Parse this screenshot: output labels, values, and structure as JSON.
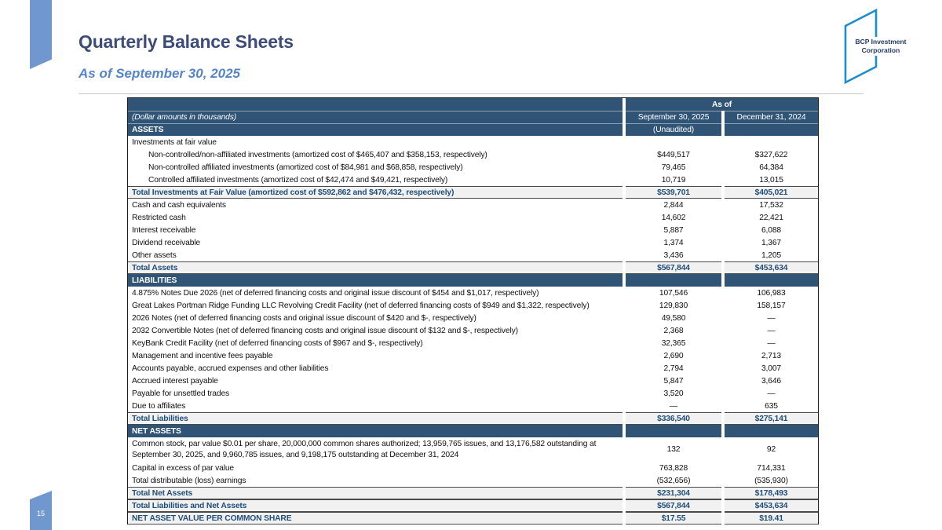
{
  "page": {
    "title": "Quarterly Balance Sheets",
    "subtitle": "As of September 30, 2025",
    "page_number": "15",
    "logo_line1": "BCP Investment",
    "logo_line2": "Corporation"
  },
  "colors": {
    "navy_header": "#305476",
    "total_text": "#1F4E79",
    "total_bg": "#F1F1F1",
    "ribbon_blue": "#7098CE",
    "title_color": "#3C4B78",
    "subtitle_color": "#5585C6",
    "logo_stroke": "#1B8ECB",
    "logo_text_color": "#203864"
  },
  "table": {
    "header": {
      "as_of": "As of",
      "note": "(Dollar amounts in thousands)",
      "col_sep": "September 30, 2025",
      "col_dec": "December 31, 2024",
      "col_sep_sub": "(Unaudited)",
      "assets_label": "ASSETS"
    },
    "rows": [
      {
        "type": "plain",
        "indent": false,
        "label": "Investments at fair value",
        "v1": "",
        "v2": ""
      },
      {
        "type": "plain",
        "indent": true,
        "label": "Non-controlled/non-affiliated investments (amortized cost of $465,407 and $358,153, respectively)",
        "v1": "$449,517",
        "v2": "$327,622"
      },
      {
        "type": "plain",
        "indent": true,
        "label": "Non-controlled affiliated investments (amortized cost of $84,981 and $68,858, respectively)",
        "v1": "79,465",
        "v2": "64,384"
      },
      {
        "type": "plain",
        "indent": true,
        "label": "Controlled affiliated investments (amortized cost of $42,474 and $49,421, respectively)",
        "v1": "10,719",
        "v2": "13,015"
      },
      {
        "type": "total",
        "indent": false,
        "label": "Total Investments at Fair Value (amortized cost of $592,862 and $476,432, respectively)",
        "v1": "$539,701",
        "v2": "$405,021"
      },
      {
        "type": "plain",
        "indent": false,
        "label": "Cash and cash equivalents",
        "v1": "2,844",
        "v2": "17,532"
      },
      {
        "type": "plain",
        "indent": false,
        "label": "Restricted cash",
        "v1": "14,602",
        "v2": "22,421"
      },
      {
        "type": "plain",
        "indent": false,
        "label": "Interest receivable",
        "v1": "5,887",
        "v2": "6,088"
      },
      {
        "type": "plain",
        "indent": false,
        "label": "Dividend receivable",
        "v1": "1,374",
        "v2": "1,367"
      },
      {
        "type": "plain",
        "indent": false,
        "label": "Other assets",
        "v1": "3,436",
        "v2": "1,205"
      },
      {
        "type": "total",
        "indent": false,
        "label": "Total Assets",
        "v1": "$567,844",
        "v2": "$453,634"
      },
      {
        "type": "section",
        "indent": false,
        "label": "LIABILITIES",
        "v1": "",
        "v2": ""
      },
      {
        "type": "plain",
        "indent": false,
        "label": "4.875% Notes Due 2026 (net of deferred financing costs and original issue discount of $454 and $1,017, respectively)",
        "v1": "107,546",
        "v2": "106,983"
      },
      {
        "type": "plain",
        "indent": false,
        "label": "Great Lakes Portman Ridge Funding LLC Revolving Credit Facility (net of deferred financing costs of $949 and $1,322, respectively)",
        "v1": "129,830",
        "v2": "158,157"
      },
      {
        "type": "plain",
        "indent": false,
        "label": "2026 Notes (net of deferred financing costs and original issue discount of $420 and $-, respectively)",
        "v1": "49,580",
        "v2": "—"
      },
      {
        "type": "plain",
        "indent": false,
        "label": "2032 Convertible Notes (net of deferred financing costs and original issue discount of $132 and $-, respectively)",
        "v1": "2,368",
        "v2": "—"
      },
      {
        "type": "plain",
        "indent": false,
        "label": "KeyBank Credit Facility (net of deferred financing costs of $967 and $-, respectively)",
        "v1": "32,365",
        "v2": "—"
      },
      {
        "type": "plain",
        "indent": false,
        "label": "Management and incentive fees payable",
        "v1": "2,690",
        "v2": "2,713"
      },
      {
        "type": "plain",
        "indent": false,
        "label": "Accounts payable, accrued expenses and other liabilities",
        "v1": "2,794",
        "v2": "3,007"
      },
      {
        "type": "plain",
        "indent": false,
        "label": "Accrued interest payable",
        "v1": "5,847",
        "v2": "3,646"
      },
      {
        "type": "plain",
        "indent": false,
        "label": "Payable for unsettled trades",
        "v1": "3,520",
        "v2": "—"
      },
      {
        "type": "plain",
        "indent": false,
        "label": "Due to affiliates",
        "v1": "—",
        "v2": "635"
      },
      {
        "type": "total",
        "indent": false,
        "label": "Total Liabilities",
        "v1": "$336,540",
        "v2": "$275,141"
      },
      {
        "type": "section",
        "indent": false,
        "label": "NET ASSETS",
        "v1": "",
        "v2": ""
      },
      {
        "type": "twoline",
        "indent": false,
        "label": "Common stock, par value $0.01 per share, 20,000,000 common shares authorized; 13,959,765 issues, and 13,176,582 outstanding at September 30, 2025, and 9,960,785 issues, and 9,198,175 outstanding at December 31, 2024",
        "v1": "132",
        "v2": "92"
      },
      {
        "type": "plain",
        "indent": false,
        "label": "Capital in excess of par value",
        "v1": "763,828",
        "v2": "714,331"
      },
      {
        "type": "plain",
        "indent": false,
        "label": "Total distributable (loss) earnings",
        "v1": "(532,656)",
        "v2": "(535,930)"
      },
      {
        "type": "total",
        "indent": false,
        "label": "Total Net Assets",
        "v1": "$231,304",
        "v2": "$178,493"
      },
      {
        "type": "total",
        "indent": false,
        "label": "Total Liabilities and Net Assets",
        "v1": "$567,844",
        "v2": "$453,634"
      },
      {
        "type": "total",
        "indent": false,
        "label": "NET ASSET VALUE PER COMMON SHARE",
        "v1": "$17.55",
        "v2": "$19.41"
      }
    ]
  }
}
